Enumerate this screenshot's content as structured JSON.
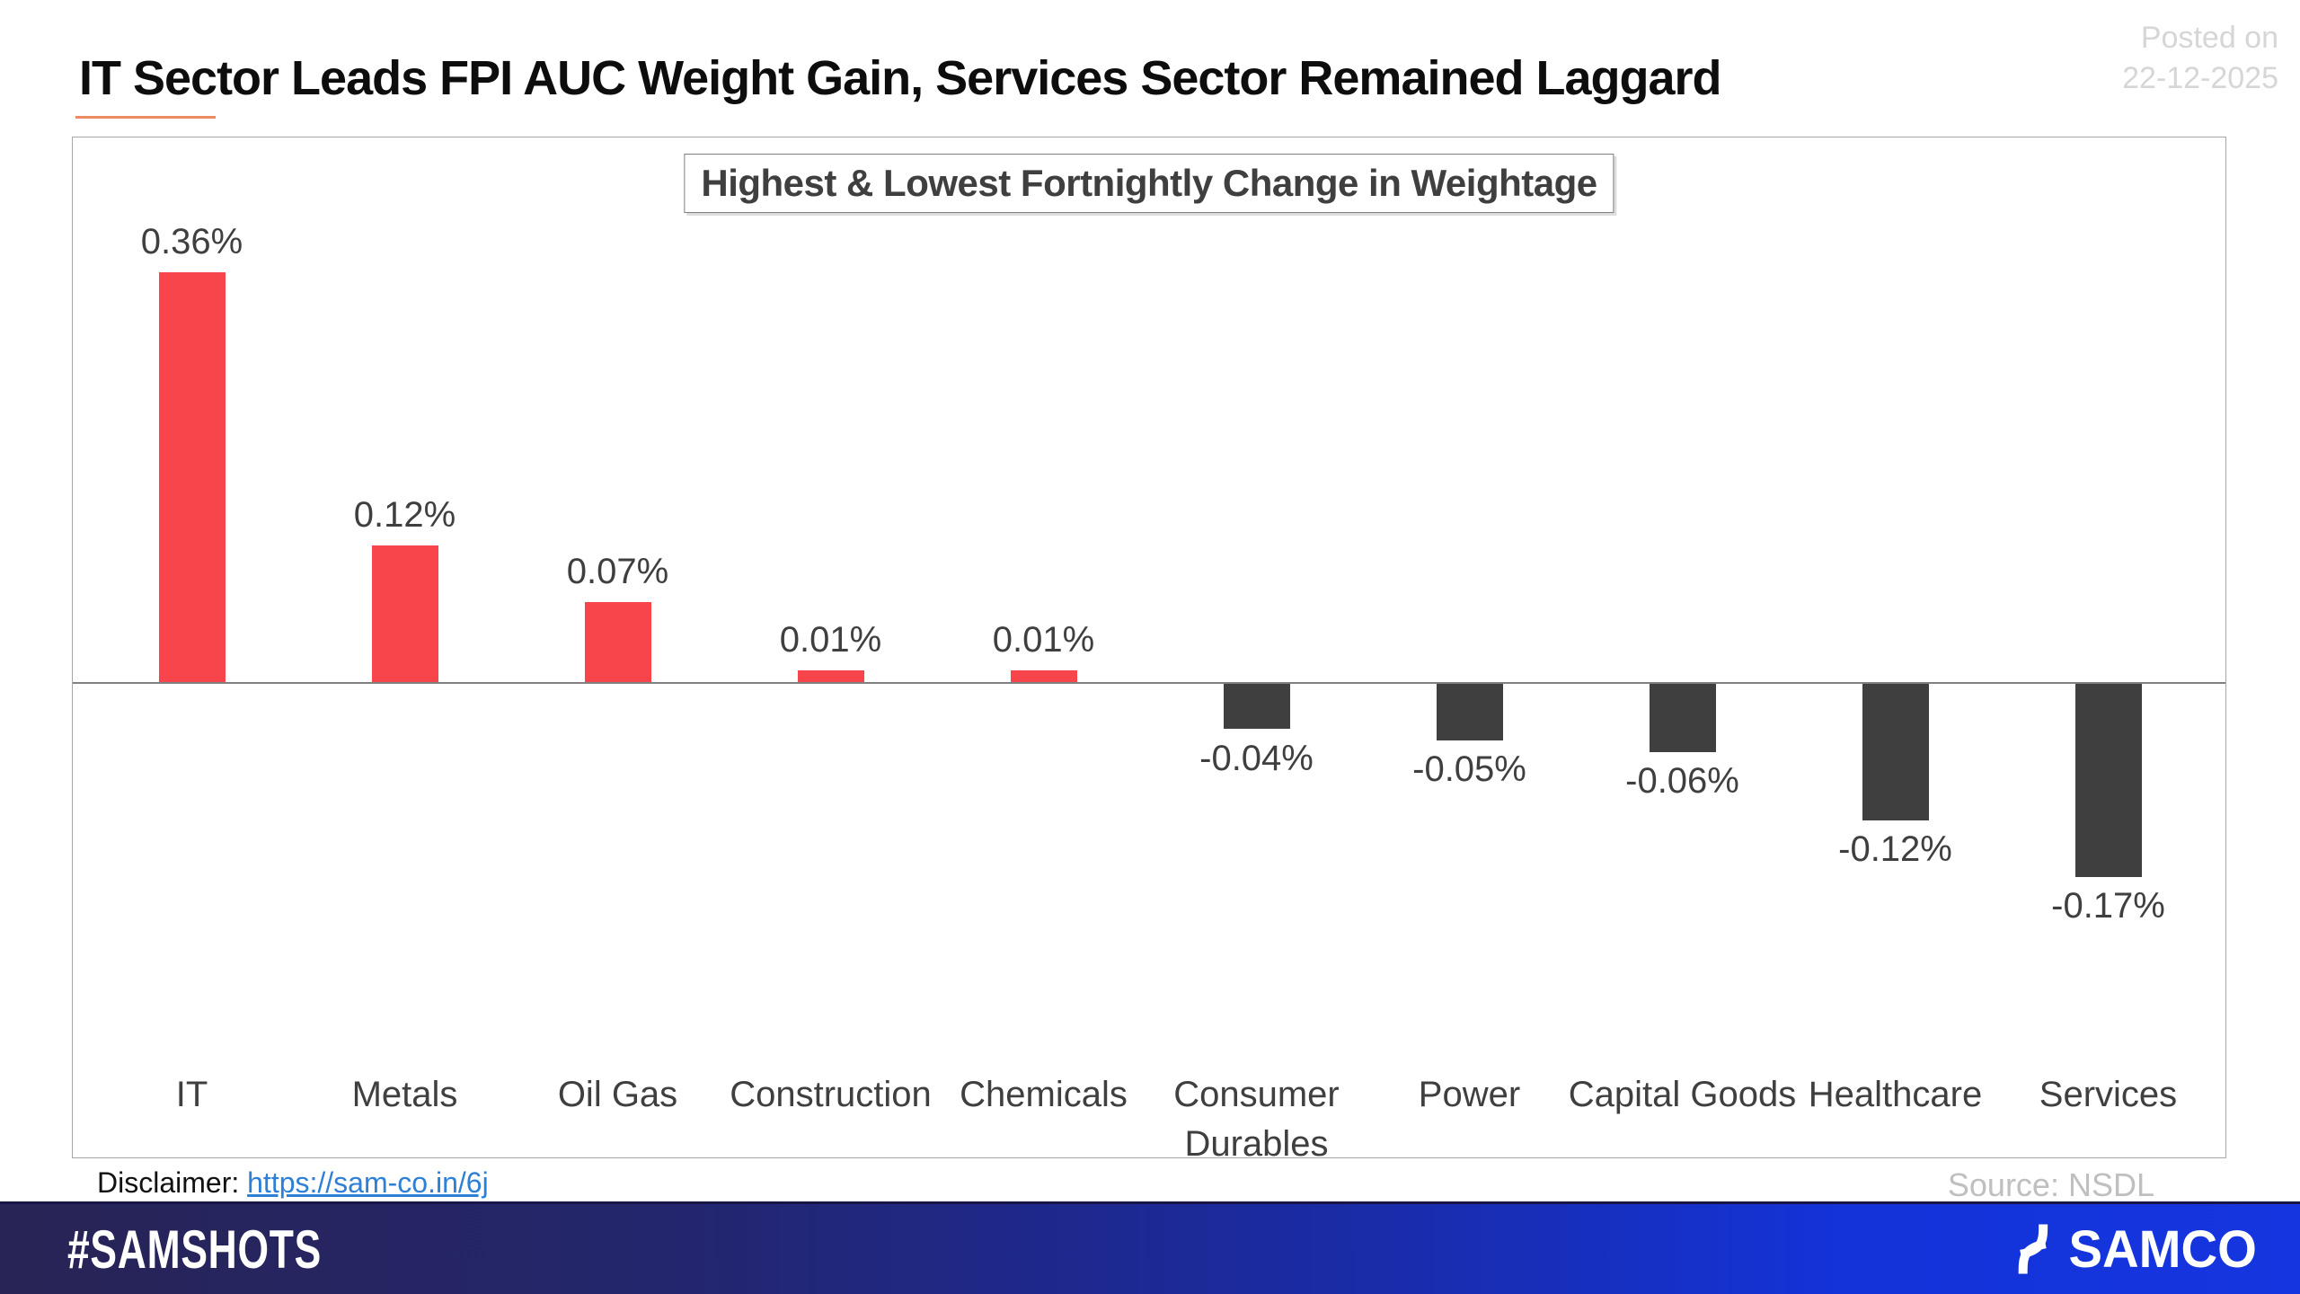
{
  "page": {
    "title": "IT Sector Leads FPI AUC Weight Gain, Services Sector Remained Laggard",
    "posted_on": {
      "line1": "Posted on",
      "line2": "22-12-2025"
    },
    "disclaimer": {
      "label": "Disclaimer: ",
      "link_text": "https://sam-co.in/6j"
    },
    "source": "Source: NSDL",
    "footer": {
      "hashtag": "#SAMSHOTS",
      "brand": "SAMCO"
    }
  },
  "chart_data": {
    "type": "bar",
    "title": "Highest & Lowest Fortnightly Change in Weightage",
    "categories": [
      "IT",
      "Metals",
      "Oil Gas",
      "Construction",
      "Chemicals",
      "Consumer Durables",
      "Power",
      "Capital Goods",
      "Healthcare",
      "Services"
    ],
    "values": [
      0.36,
      0.12,
      0.07,
      0.01,
      0.01,
      -0.04,
      -0.05,
      -0.06,
      -0.12,
      -0.17
    ],
    "value_labels": [
      "0.36%",
      "0.12%",
      "0.07%",
      "0.01%",
      "0.01%",
      "-0.04%",
      "-0.05%",
      "-0.06%",
      "-0.12%",
      "-0.17%"
    ],
    "unit": "%",
    "xlabel": "",
    "ylabel": "",
    "ylim": [
      -0.2,
      0.48
    ],
    "grid": false,
    "legend": false,
    "positive_color": "#F8444B",
    "negative_color": "#3F3F3F",
    "label_color": "#3F3F3F",
    "axis_color": "#808080"
  }
}
